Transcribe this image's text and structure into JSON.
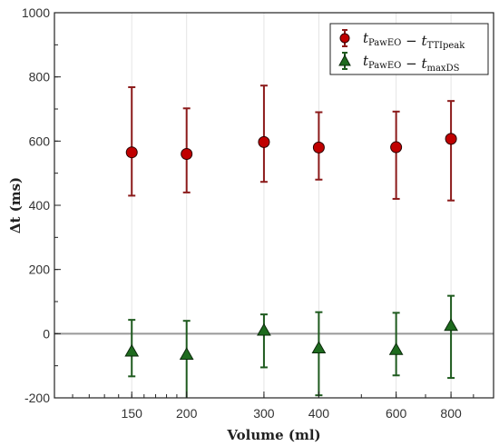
{
  "chart_data": {
    "type": "scatter",
    "title": "",
    "xlabel": "Volume (ml)",
    "ylabel": "Δt (ms)",
    "x_scale": "log",
    "xlim": [
      100,
      1000
    ],
    "ylim": [
      -200,
      1000
    ],
    "x_ticks": [
      150,
      200,
      300,
      400,
      600,
      800
    ],
    "y_ticks": [
      -200,
      0,
      200,
      400,
      600,
      800,
      1000
    ],
    "grid": "vertical",
    "reference_line_y": 0,
    "legend_position": "top-right",
    "series": [
      {
        "name": "tPawEO − tTTIpeak",
        "legend_parts": {
          "t1": "t",
          "s1": "PawEO",
          "op": "−",
          "t2": "t",
          "s2": "TTIpeak"
        },
        "marker": "circle",
        "color": "#c00000",
        "line_color": "#8b1a1a",
        "x": [
          150,
          200,
          300,
          400,
          600,
          800
        ],
        "y": [
          565,
          560,
          597,
          580,
          581,
          607
        ],
        "y_low": [
          430,
          440,
          473,
          480,
          420,
          415
        ],
        "y_high": [
          768,
          702,
          773,
          690,
          692,
          725
        ]
      },
      {
        "name": "tPawEO − tmaxDS",
        "legend_parts": {
          "t1": "t",
          "s1": "PawEO",
          "op": "−",
          "t2": "t",
          "s2": "maxDS"
        },
        "marker": "triangle",
        "color": "#1e6b1e",
        "line_color": "#1e5a1e",
        "x": [
          150,
          200,
          300,
          400,
          600,
          800
        ],
        "y": [
          -55,
          -65,
          10,
          -45,
          -50,
          25
        ],
        "y_low": [
          -133,
          -210,
          -105,
          -192,
          -130,
          -138
        ],
        "y_high": [
          43,
          40,
          60,
          67,
          65,
          118
        ]
      }
    ]
  }
}
